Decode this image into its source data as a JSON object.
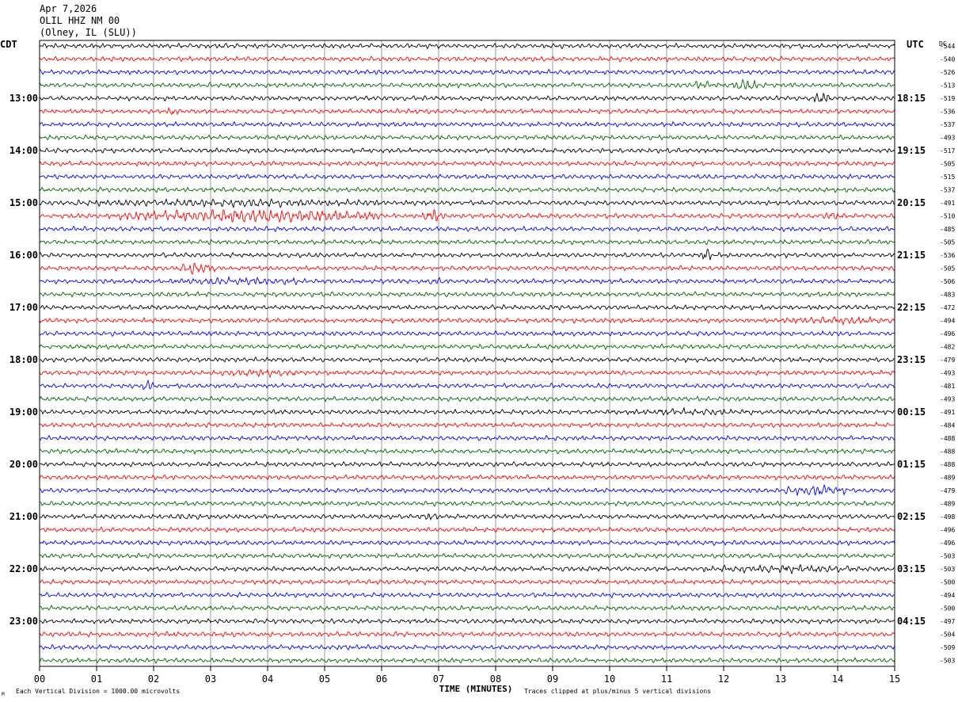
{
  "header": {
    "date": "Apr 7,2026",
    "station": "OLIL HHZ NM 00",
    "location": "(Olney, IL (SLU))"
  },
  "left_axis_label": "CDT",
  "right_axis_label": "UTC",
  "dc_label": "DC",
  "footer": {
    "scale_note": "Each Vertical Division = 1000.00 microvolts",
    "clip_note": "Traces clipped at plus/minus 5 vertical divisions",
    "corner_mark": "M"
  },
  "colors": [
    "#000000",
    "#ff0000",
    "#0000ff",
    "#006400"
  ],
  "chart_data": {
    "type": "line",
    "title": "",
    "xlabel": "TIME (MINUTES)",
    "ylabel": "",
    "xlim": [
      0,
      15
    ],
    "x_ticks": [
      "00",
      "01",
      "02",
      "03",
      "04",
      "05",
      "06",
      "07",
      "08",
      "09",
      "10",
      "11",
      "12",
      "13",
      "14",
      "15"
    ],
    "grid": true,
    "trace_count": 48,
    "trace_minutes": 15,
    "cdt_labels": [
      {
        "trace": 4,
        "label": "13:00"
      },
      {
        "trace": 8,
        "label": "14:00"
      },
      {
        "trace": 12,
        "label": "15:00"
      },
      {
        "trace": 16,
        "label": "16:00"
      },
      {
        "trace": 20,
        "label": "17:00"
      },
      {
        "trace": 24,
        "label": "18:00"
      },
      {
        "trace": 28,
        "label": "19:00"
      },
      {
        "trace": 32,
        "label": "20:00"
      },
      {
        "trace": 36,
        "label": "21:00"
      },
      {
        "trace": 40,
        "label": "22:00"
      },
      {
        "trace": 44,
        "label": "23:00"
      }
    ],
    "utc_labels": [
      {
        "trace": 4,
        "label": "18:15"
      },
      {
        "trace": 8,
        "label": "19:15"
      },
      {
        "trace": 12,
        "label": "20:15"
      },
      {
        "trace": 16,
        "label": "21:15"
      },
      {
        "trace": 20,
        "label": "22:15"
      },
      {
        "trace": 24,
        "label": "23:15"
      },
      {
        "trace": 28,
        "label": "00:15"
      },
      {
        "trace": 32,
        "label": "01:15"
      },
      {
        "trace": 36,
        "label": "02:15"
      },
      {
        "trace": 40,
        "label": "03:15"
      },
      {
        "trace": 44,
        "label": "04:15"
      }
    ],
    "dc_offsets": [
      "-544",
      "-540",
      "-526",
      "-513",
      "-519",
      "-536",
      "-537",
      "-493",
      "-517",
      "-505",
      "-515",
      "-537",
      "-491",
      "-510",
      "-485",
      "-505",
      "-536",
      "-505",
      "-506",
      "-483",
      "-472",
      "-494",
      "-496",
      "-482",
      "-479",
      "-493",
      "-481",
      "-493",
      "-491",
      "-484",
      "-488",
      "-488",
      "-488",
      "-489",
      "-479",
      "-489",
      "-498",
      "-496",
      "-496",
      "-503",
      "-503",
      "-500",
      "-494",
      "-500",
      "-497",
      "-504",
      "-509",
      "-503"
    ],
    "events": [
      {
        "trace": 3,
        "start": 11.4,
        "end": 11.8,
        "amp": 2.0
      },
      {
        "trace": 3,
        "start": 12.1,
        "end": 12.6,
        "amp": 3.0
      },
      {
        "trace": 4,
        "start": 13.5,
        "end": 13.9,
        "amp": 3.0
      },
      {
        "trace": 5,
        "start": 2.2,
        "end": 2.5,
        "amp": 2.0
      },
      {
        "trace": 12,
        "start": 0.6,
        "end": 6.0,
        "amp": 1.8
      },
      {
        "trace": 13,
        "start": 1.4,
        "end": 6.0,
        "amp": 3.5
      },
      {
        "trace": 13,
        "start": 6.7,
        "end": 7.1,
        "amp": 3.0
      },
      {
        "trace": 13,
        "start": 13.7,
        "end": 14.1,
        "amp": 2.0
      },
      {
        "trace": 16,
        "start": 11.6,
        "end": 11.8,
        "amp": 3.5
      },
      {
        "trace": 17,
        "start": 2.4,
        "end": 3.1,
        "amp": 3.0
      },
      {
        "trace": 18,
        "start": 2.3,
        "end": 4.5,
        "amp": 1.8
      },
      {
        "trace": 18,
        "start": 6.8,
        "end": 7.1,
        "amp": 2.0
      },
      {
        "trace": 21,
        "start": 13.0,
        "end": 15.0,
        "amp": 1.8
      },
      {
        "trace": 25,
        "start": 3.2,
        "end": 4.5,
        "amp": 1.8
      },
      {
        "trace": 26,
        "start": 1.8,
        "end": 2.0,
        "amp": 3.5
      },
      {
        "trace": 28,
        "start": 10.3,
        "end": 12.5,
        "amp": 1.6
      },
      {
        "trace": 34,
        "start": 13.0,
        "end": 14.2,
        "amp": 2.5
      },
      {
        "trace": 36,
        "start": 2.3,
        "end": 2.9,
        "amp": 1.8
      },
      {
        "trace": 36,
        "start": 6.7,
        "end": 7.0,
        "amp": 2.0
      },
      {
        "trace": 40,
        "start": 11.6,
        "end": 14.5,
        "amp": 1.8
      }
    ]
  }
}
